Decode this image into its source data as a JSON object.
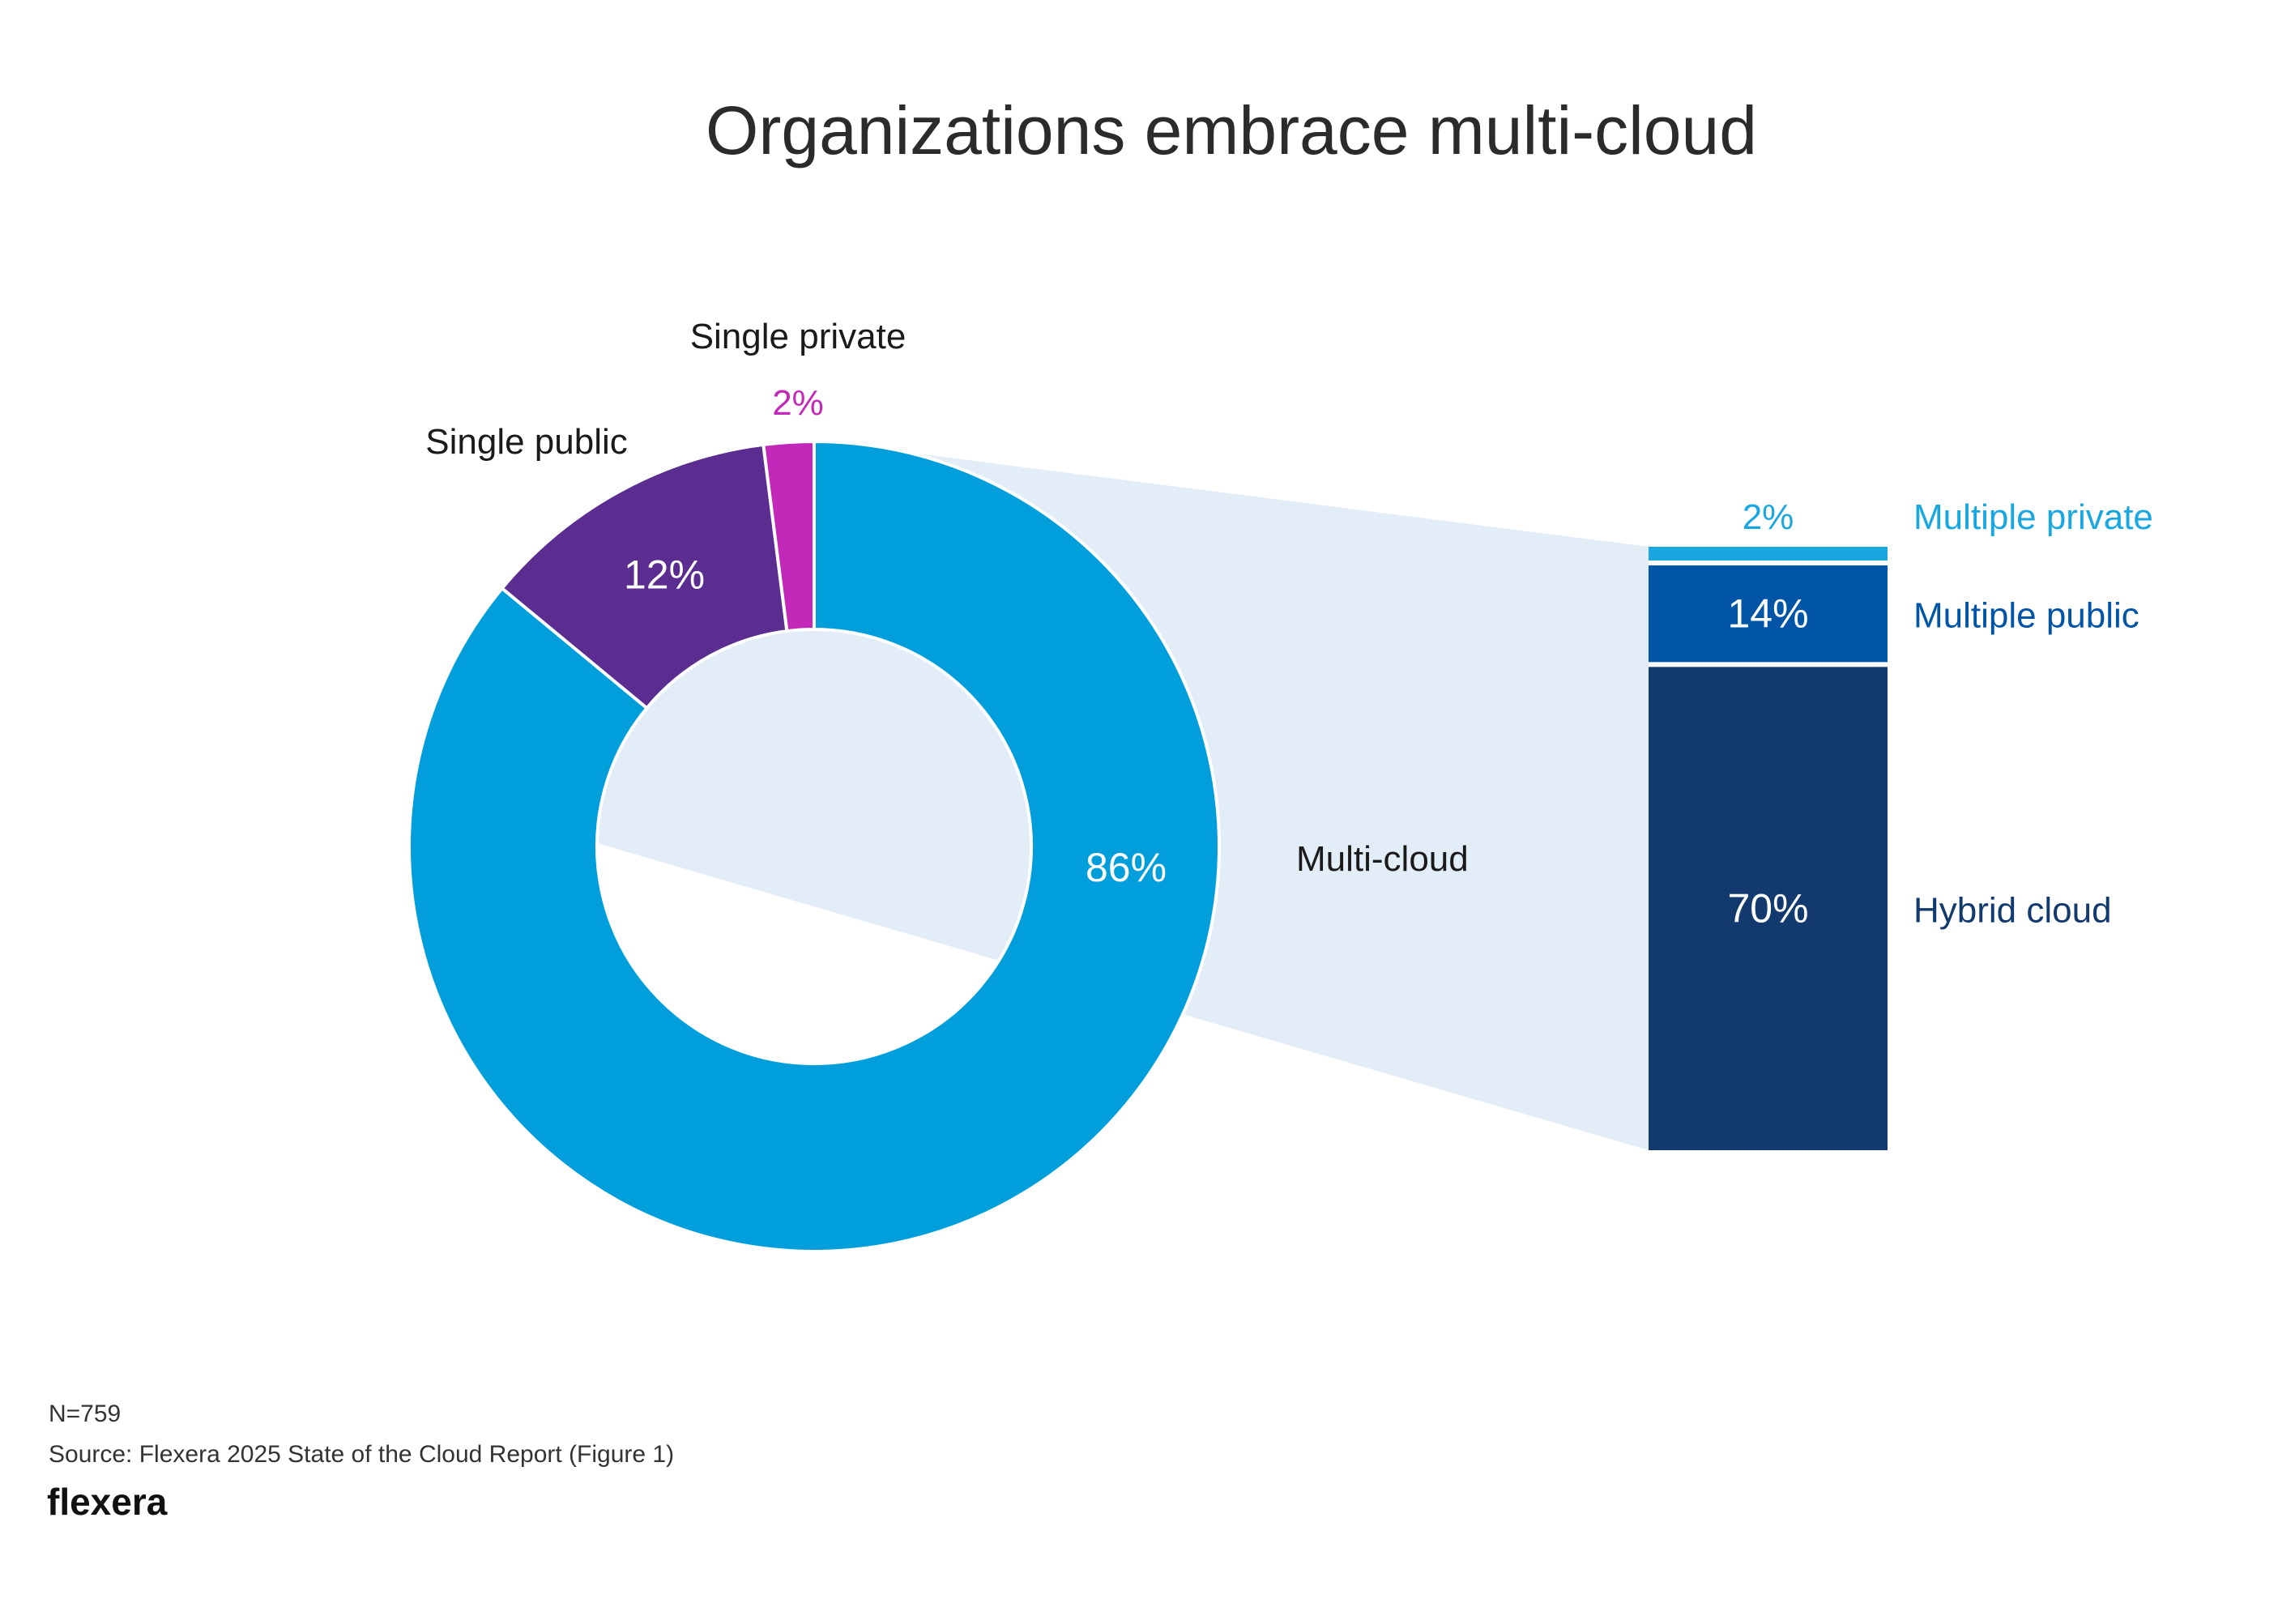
{
  "chart_data": [
    {
      "type": "pie",
      "title": "Organizations embrace multi-cloud",
      "slices": [
        {
          "name": "Multi-cloud",
          "value": 86,
          "label": "86%",
          "color": "#009fdb"
        },
        {
          "name": "Single public",
          "value": 12,
          "label": "12%",
          "color": "#5b2d91"
        },
        {
          "name": "Single private",
          "value": 2,
          "label": "2%",
          "color": "#c229b8"
        }
      ]
    },
    {
      "type": "bar",
      "stacked": true,
      "categories": [
        "Multi-cloud"
      ],
      "series": [
        {
          "name": "Hybrid cloud",
          "values": [
            70
          ],
          "label": "70%",
          "color": "#123a6e"
        },
        {
          "name": "Multiple public",
          "values": [
            14
          ],
          "label": "14%",
          "color": "#0055a6"
        },
        {
          "name": "Multiple private",
          "values": [
            2
          ],
          "label": "2%",
          "color": "#1aa7e0"
        }
      ]
    }
  ],
  "footer": {
    "sample": "N=759",
    "source": "Source: Flexera 2025 State of the Cloud Report (Figure 1)",
    "brand": "flexera"
  },
  "colors": {
    "connector_fill": "#e3edf8",
    "title_text": "#2b2b2b"
  }
}
